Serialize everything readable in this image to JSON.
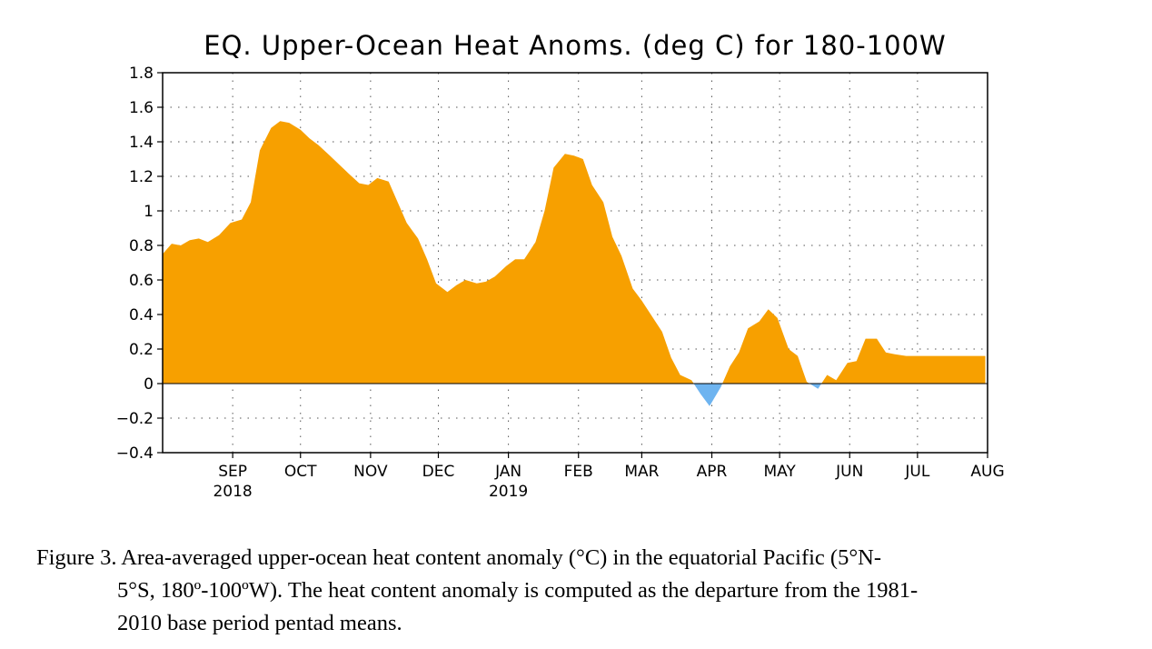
{
  "chart_data": {
    "type": "area",
    "title": "EQ. Upper-Ocean Heat Anoms. (deg C) for 180-100W",
    "xlabel": "",
    "ylabel": "",
    "ylim": [
      -0.4,
      1.8
    ],
    "yticks": [
      1.8,
      1.6,
      1.4,
      1.2,
      1,
      0.8,
      0.6,
      0.4,
      0.2,
      0,
      -0.2,
      -0.4
    ],
    "ytick_labels": [
      "1.8",
      "1.6",
      "1.4",
      "1.2",
      "1",
      "0.8",
      "0.6",
      "0.4",
      "0.2",
      "0",
      "−0.2",
      "−0.4"
    ],
    "xlim": [
      "2018-08-01",
      "2019-08-01"
    ],
    "xticks": [
      {
        "date": "2018-09-01",
        "label": "SEP",
        "sublabel": "2018"
      },
      {
        "date": "2018-10-01",
        "label": "OCT",
        "sublabel": ""
      },
      {
        "date": "2018-11-01",
        "label": "NOV",
        "sublabel": ""
      },
      {
        "date": "2018-12-01",
        "label": "DEC",
        "sublabel": ""
      },
      {
        "date": "2019-01-01",
        "label": "JAN",
        "sublabel": "2019"
      },
      {
        "date": "2019-02-01",
        "label": "FEB",
        "sublabel": ""
      },
      {
        "date": "2019-03-01",
        "label": "MAR",
        "sublabel": ""
      },
      {
        "date": "2019-04-01",
        "label": "APR",
        "sublabel": ""
      },
      {
        "date": "2019-05-01",
        "label": "MAY",
        "sublabel": ""
      },
      {
        "date": "2019-06-01",
        "label": "JUN",
        "sublabel": ""
      },
      {
        "date": "2019-07-01",
        "label": "JUL",
        "sublabel": ""
      },
      {
        "date": "2019-08-01",
        "label": "AUG",
        "sublabel": ""
      }
    ],
    "grid": true,
    "positive_color": "#F7A000",
    "negative_color": "#6EB4F0",
    "series": [
      {
        "x": [
          "2018-08-01",
          "2018-08-05",
          "2018-08-09",
          "2018-08-13",
          "2018-08-17",
          "2018-08-21",
          "2018-08-26",
          "2018-08-31",
          "2018-09-05",
          "2018-09-09",
          "2018-09-13",
          "2018-09-18",
          "2018-09-22",
          "2018-09-26",
          "2018-10-01",
          "2018-10-05",
          "2018-10-09",
          "2018-10-14",
          "2018-10-18",
          "2018-10-22",
          "2018-10-27",
          "2018-10-31",
          "2018-11-04",
          "2018-11-09",
          "2018-11-13",
          "2018-11-17",
          "2018-11-22",
          "2018-11-26",
          "2018-11-30",
          "2018-12-05",
          "2018-12-09",
          "2018-12-13",
          "2018-12-18",
          "2018-12-22",
          "2018-12-26",
          "2018-12-31",
          "2019-01-04",
          "2019-01-08",
          "2019-01-13",
          "2019-01-17",
          "2019-01-21",
          "2019-01-26",
          "2019-01-30",
          "2019-02-03",
          "2019-02-07",
          "2019-02-12",
          "2019-02-16",
          "2019-02-20",
          "2019-02-25",
          "2019-03-01",
          "2019-03-05",
          "2019-03-10",
          "2019-03-14",
          "2019-03-18",
          "2019-03-23",
          "2019-03-27",
          "2019-03-31",
          "2019-04-05",
          "2019-04-09",
          "2019-04-13",
          "2019-04-17",
          "2019-04-22",
          "2019-04-26",
          "2019-04-30",
          "2019-05-05",
          "2019-05-09",
          "2019-05-13",
          "2019-05-18",
          "2019-05-22",
          "2019-05-26",
          "2019-05-31",
          "2019-06-04",
          "2019-06-08",
          "2019-06-13",
          "2019-06-17",
          "2019-06-21",
          "2019-06-26",
          "2019-06-30",
          "2019-07-04",
          "2019-07-09",
          "2019-07-13",
          "2019-07-17",
          "2019-07-22",
          "2019-07-26",
          "2019-07-31"
        ],
        "values": [
          0.75,
          0.81,
          0.8,
          0.83,
          0.84,
          0.82,
          0.86,
          0.93,
          0.95,
          1.05,
          1.35,
          1.48,
          1.52,
          1.51,
          1.47,
          1.42,
          1.38,
          1.32,
          1.27,
          1.22,
          1.16,
          1.15,
          1.19,
          1.17,
          1.05,
          0.93,
          0.84,
          0.72,
          0.58,
          0.53,
          0.57,
          0.6,
          0.58,
          0.59,
          0.62,
          0.68,
          0.72,
          0.72,
          0.82,
          1.0,
          1.25,
          1.33,
          1.32,
          1.3,
          1.15,
          1.05,
          0.85,
          0.74,
          0.55,
          0.48,
          0.4,
          0.3,
          0.15,
          0.05,
          0.02,
          -0.06,
          -0.13,
          -0.02,
          0.1,
          0.18,
          0.32,
          0.36,
          0.43,
          0.38,
          0.2,
          0.16,
          0.01,
          -0.03,
          0.05,
          0.02,
          0.12,
          0.13,
          0.26,
          0.26,
          0.18,
          0.17,
          0.16,
          0.16,
          0.16,
          0.16,
          0.16,
          0.16,
          0.16,
          0.16,
          0.16
        ]
      }
    ]
  },
  "caption": {
    "line1": "Figure 3. Area-averaged upper-ocean heat content anomaly (°C) in the equatorial Pacific (5°N-",
    "line2": "5°S, 180º-100ºW). The heat content anomaly is computed as the departure from the 1981-",
    "line3": "2010 base period pentad means."
  }
}
